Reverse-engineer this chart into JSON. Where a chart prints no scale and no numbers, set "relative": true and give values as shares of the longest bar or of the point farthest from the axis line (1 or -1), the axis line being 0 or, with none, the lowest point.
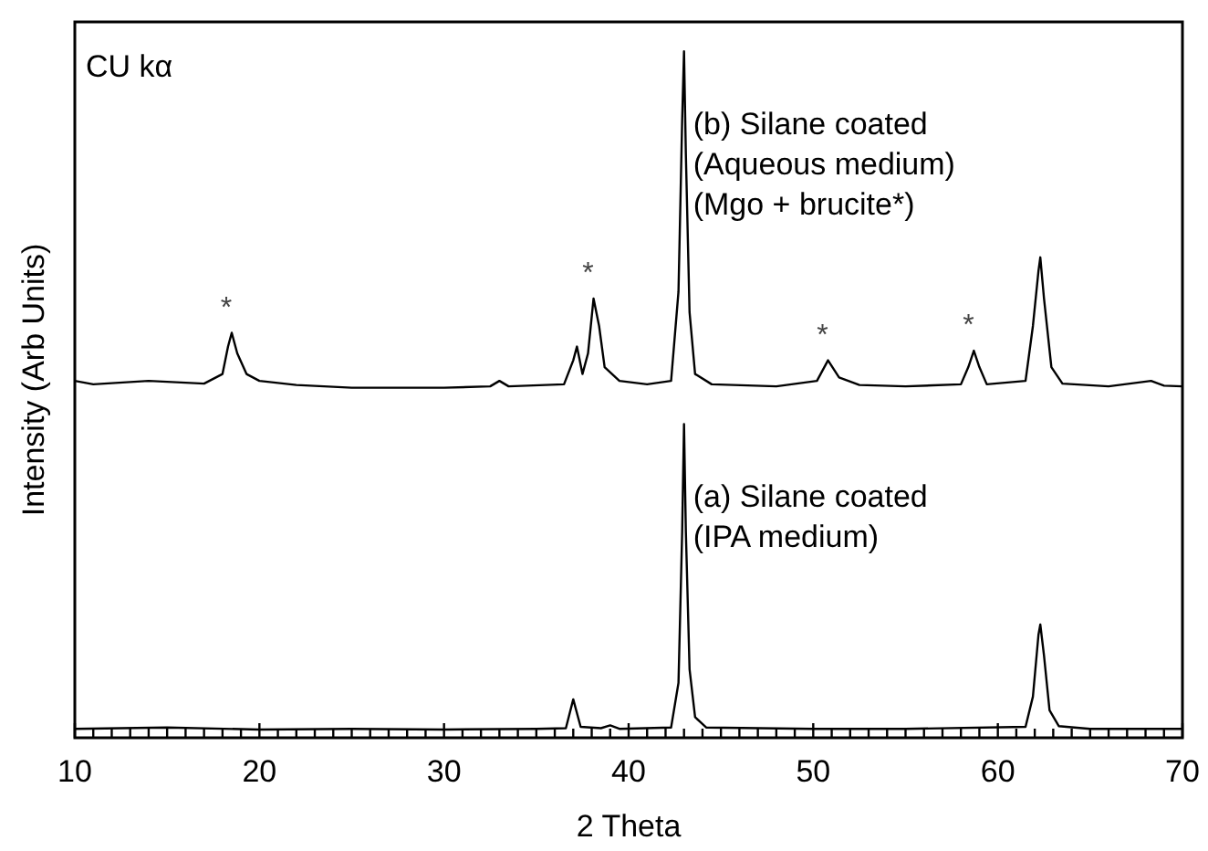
{
  "chart_data": {
    "type": "line",
    "relative": true,
    "xlabel": "2 Theta",
    "ylabel": "Intensity (Arb Units)",
    "xlim": [
      10,
      70
    ],
    "xticks": [
      10,
      {
        "value": 11,
        "label": null
      },
      {
        "value": 12,
        "label": null
      },
      {
        "value": 13,
        "label": null
      },
      {
        "value": 14,
        "label": null
      },
      {
        "value": 15,
        "label": null
      },
      {
        "value": 16,
        "label": null
      },
      {
        "value": 17,
        "label": null
      },
      {
        "value": 18,
        "label": null
      },
      {
        "value": 19,
        "label": null
      },
      20,
      {
        "value": 21,
        "label": null
      },
      {
        "value": 22,
        "label": null
      },
      {
        "value": 23,
        "label": null
      },
      {
        "value": 24,
        "label": null
      },
      {
        "value": 25,
        "label": null
      },
      {
        "value": 26,
        "label": null
      },
      {
        "value": 27,
        "label": null
      },
      {
        "value": 28,
        "label": null
      },
      {
        "value": 29,
        "label": null
      },
      30,
      {
        "value": 31,
        "label": null
      },
      {
        "value": 32,
        "label": null
      },
      {
        "value": 33,
        "label": null
      },
      {
        "value": 34,
        "label": null
      },
      {
        "value": 35,
        "label": null
      },
      {
        "value": 36,
        "label": null
      },
      {
        "value": 37,
        "label": null
      },
      {
        "value": 38,
        "label": null
      },
      {
        "value": 39,
        "label": null
      },
      40,
      {
        "value": 41,
        "label": null
      },
      {
        "value": 42,
        "label": null
      },
      {
        "value": 43,
        "label": null
      },
      {
        "value": 44,
        "label": null
      },
      {
        "value": 45,
        "label": null
      },
      {
        "value": 46,
        "label": null
      },
      {
        "value": 47,
        "label": null
      },
      {
        "value": 48,
        "label": null
      },
      {
        "value": 49,
        "label": null
      },
      50,
      {
        "value": 51,
        "label": null
      },
      {
        "value": 52,
        "label": null
      },
      {
        "value": 53,
        "label": null
      },
      {
        "value": 54,
        "label": null
      },
      {
        "value": 55,
        "label": null
      },
      {
        "value": 56,
        "label": null
      },
      {
        "value": 57,
        "label": null
      },
      {
        "value": 58,
        "label": null
      },
      {
        "value": 59,
        "label": null
      },
      60,
      {
        "value": 61,
        "label": null
      },
      {
        "value": 62,
        "label": null
      },
      {
        "value": 63,
        "label": null
      },
      {
        "value": 64,
        "label": null
      },
      {
        "value": 65,
        "label": null
      },
      {
        "value": 66,
        "label": null
      },
      {
        "value": 67,
        "label": null
      },
      {
        "value": 68,
        "label": null
      },
      {
        "value": 69,
        "label": null
      },
      70
    ],
    "grid": false,
    "marker": "none",
    "line_style": "solid",
    "series": [
      {
        "name": "(a) Silane coated\n(IPA medium)",
        "color": "#000000",
        "x": [
          10,
          15,
          20,
          25,
          30,
          35,
          36.6,
          37.0,
          37.4,
          38.5,
          39,
          39.5,
          42.3,
          42.7,
          42.9,
          43.0,
          43.1,
          43.3,
          43.6,
          44.2,
          50,
          55,
          61.5,
          61.9,
          62.2,
          62.3,
          62.5,
          62.8,
          63.3,
          65,
          70
        ],
        "values": [
          0.013,
          0.015,
          0.012,
          0.013,
          0.012,
          0.013,
          0.014,
          0.056,
          0.016,
          0.014,
          0.018,
          0.013,
          0.015,
          0.08,
          0.3,
          0.457,
          0.3,
          0.1,
          0.03,
          0.015,
          0.013,
          0.013,
          0.016,
          0.06,
          0.15,
          0.165,
          0.12,
          0.04,
          0.017,
          0.013,
          0.013
        ]
      },
      {
        "name": "(b) Silane coated\n(Aqueous medium)\n(Mgo + brucite*)",
        "color": "#000000",
        "x": [
          10,
          11,
          14,
          17,
          18.0,
          18.3,
          18.5,
          18.8,
          19.3,
          20,
          22,
          25,
          30,
          32.5,
          33,
          33.5,
          36.5,
          37.0,
          37.2,
          37.5,
          37.8,
          38.1,
          38.4,
          38.7,
          39.5,
          41,
          42.3,
          42.7,
          42.9,
          43.0,
          43.1,
          43.3,
          43.6,
          44.5,
          48,
          50.2,
          50.8,
          51.4,
          52.5,
          55,
          58,
          58.4,
          58.7,
          59.0,
          59.4,
          61.5,
          61.9,
          62.2,
          62.3,
          62.5,
          62.9,
          63.5,
          66,
          68.3,
          69,
          70
        ],
        "values": [
          0.52,
          0.515,
          0.52,
          0.516,
          0.53,
          0.57,
          0.59,
          0.56,
          0.53,
          0.52,
          0.514,
          0.51,
          0.51,
          0.512,
          0.52,
          0.512,
          0.515,
          0.55,
          0.57,
          0.53,
          0.56,
          0.64,
          0.6,
          0.54,
          0.52,
          0.515,
          0.52,
          0.65,
          0.9,
          1,
          0.85,
          0.62,
          0.53,
          0.515,
          0.512,
          0.52,
          0.55,
          0.525,
          0.514,
          0.512,
          0.515,
          0.54,
          0.564,
          0.54,
          0.515,
          0.52,
          0.6,
          0.68,
          0.7,
          0.64,
          0.54,
          0.516,
          0.512,
          0.52,
          0.513,
          0.512
        ]
      }
    ],
    "annotations": [
      "CU kα",
      {
        "text": "*",
        "x": 18.5,
        "y": 0.59
      },
      {
        "text": "*",
        "x": 38.1,
        "y": 0.64
      },
      {
        "text": "*",
        "x": 50.8,
        "y": 0.55
      },
      {
        "text": "*",
        "x": 58.7,
        "y": 0.564
      }
    ]
  }
}
